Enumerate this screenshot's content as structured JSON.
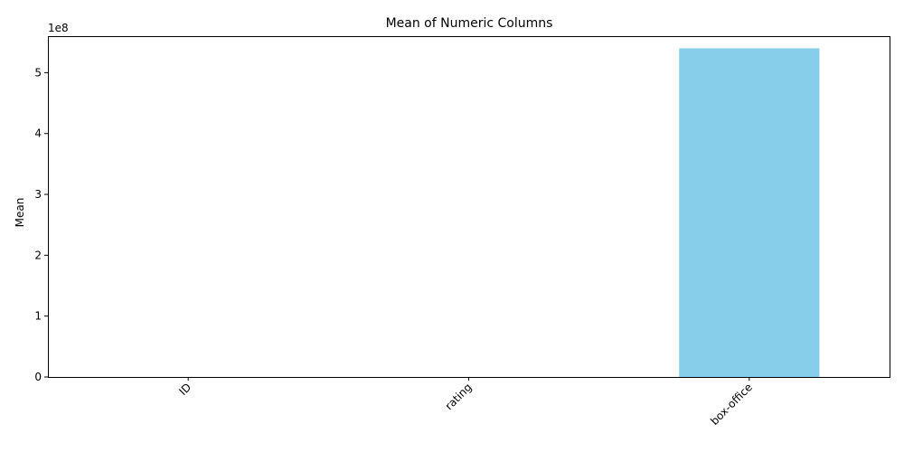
{
  "chart_data": {
    "type": "bar",
    "title": "Mean of Numeric Columns",
    "xlabel": "",
    "ylabel": "Mean",
    "categories": [
      "ID",
      "rating",
      "box-office"
    ],
    "values": [
      15,
      7.5,
      540000000
    ],
    "ylim": [
      0,
      560000000
    ],
    "y_ticks": [
      0,
      100000000,
      200000000,
      300000000,
      400000000,
      500000000
    ],
    "y_tick_labels": [
      "0",
      "1",
      "2",
      "3",
      "4",
      "5"
    ],
    "y_offset_label": "1e8",
    "bar_color": "#87ceeb",
    "x_tick_rotation": "45deg",
    "grid": false,
    "legend": "none"
  }
}
